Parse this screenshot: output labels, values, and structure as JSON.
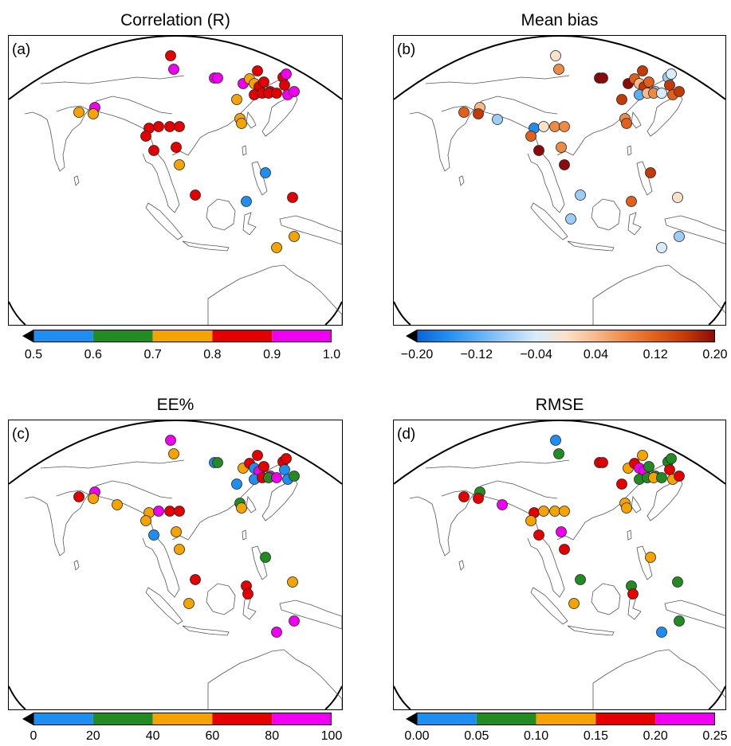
{
  "colors": {
    "blue": "#1f8ef1",
    "green": "#228b22",
    "orange": "#f5a300",
    "red": "#e50000",
    "magenta": "#f000f0",
    "diverging": [
      "#0a64d6",
      "#1f8ef1",
      "#5aaef5",
      "#9ccdf7",
      "#d8ecfb",
      "#fbe1c8",
      "#f7b98a",
      "#ef8a45",
      "#e0601b",
      "#c43a07",
      "#8c0a0a"
    ]
  },
  "panels": [
    {
      "id": "a",
      "title": "Correlation (R)",
      "label": "(a)",
      "colorbar": {
        "type": "discrete",
        "colors": [
          "#1f8ef1",
          "#228b22",
          "#f5a300",
          "#e50000",
          "#f000f0"
        ],
        "ticks": [
          "0.5",
          "0.6",
          "0.7",
          "0.8",
          "0.9",
          "1.0"
        ]
      }
    },
    {
      "id": "b",
      "title": "Mean bias",
      "label": "(b)",
      "colorbar": {
        "type": "continuous",
        "ticks": [
          "−0.20",
          "−0.12",
          "−0.04",
          "0.04",
          "0.12",
          "0.20"
        ]
      }
    },
    {
      "id": "c",
      "title": "EE%",
      "label": "(c)",
      "colorbar": {
        "type": "discrete",
        "colors": [
          "#1f8ef1",
          "#228b22",
          "#f5a300",
          "#e50000",
          "#f000f0"
        ],
        "ticks": [
          "0",
          "20",
          "40",
          "60",
          "80",
          "100"
        ]
      }
    },
    {
      "id": "d",
      "title": "RMSE",
      "label": "(d)",
      "colorbar": {
        "type": "discrete",
        "colors": [
          "#1f8ef1",
          "#228b22",
          "#f5a300",
          "#e50000",
          "#f000f0"
        ],
        "ticks": [
          "0.00",
          "0.05",
          "0.10",
          "0.15",
          "0.20",
          "0.25"
        ]
      }
    }
  ]
}
